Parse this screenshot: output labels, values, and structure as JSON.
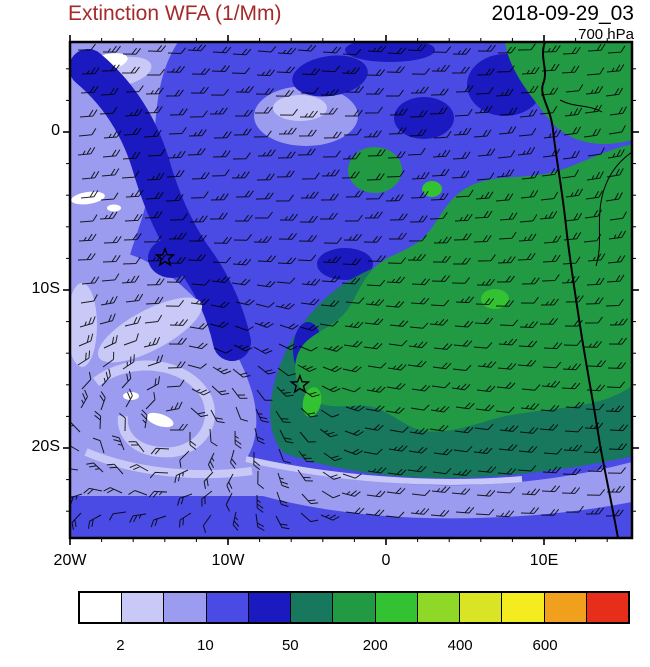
{
  "header": {
    "title": "Extinction WFA (1/Mm)",
    "datetime": "2018-09-29_03",
    "level": "700 hPa"
  },
  "axes": {
    "x_tick_labels": [
      "20W",
      "10W",
      "0",
      "10E"
    ],
    "y_tick_labels": [
      "0",
      "10S",
      "20S"
    ]
  },
  "chart_data": {
    "type": "heatmap",
    "title": "Extinction WFA (1/Mm)",
    "variable": "Extinction WFA",
    "units": "1/Mm",
    "valid_datetime": "2018-09-29_03",
    "pressure_level": "700 hPa",
    "x_tick_labels": [
      "20W",
      "10W",
      "0",
      "10E"
    ],
    "y_tick_labels": [
      "0",
      "10S",
      "20S"
    ],
    "colorbar": {
      "n_boxes": 13,
      "colors": [
        "#FFFFFF",
        "#C9C9F8",
        "#9B9BF0",
        "#4A4AE4",
        "#1A1AC0",
        "#17785E",
        "#229A44",
        "#32C232",
        "#90D828",
        "#D8E424",
        "#F4EC1E",
        "#F0A01C",
        "#E62E1A"
      ],
      "tick_labels": [
        "2",
        "10",
        "50",
        "200",
        "400",
        "600"
      ],
      "tick_boundary_indices": [
        1,
        3,
        5,
        7,
        9,
        11
      ],
      "position": "bottom"
    },
    "markers": [
      {
        "symbol": "star",
        "approx_position": "14W, 8S",
        "map_fraction_xy": [
          0.169,
          0.435
        ]
      },
      {
        "symbol": "star",
        "approx_position": "6W, 16S",
        "map_fraction_xy": [
          0.409,
          0.691
        ]
      }
    ],
    "overlays": [
      "wind barbs (easterly flow with cyclonic vortex in the southwest)",
      "West African coastline"
    ]
  },
  "styles": {
    "title_color": "#A52A2A",
    "text_color": "#000000",
    "frame_color": "#000000"
  }
}
